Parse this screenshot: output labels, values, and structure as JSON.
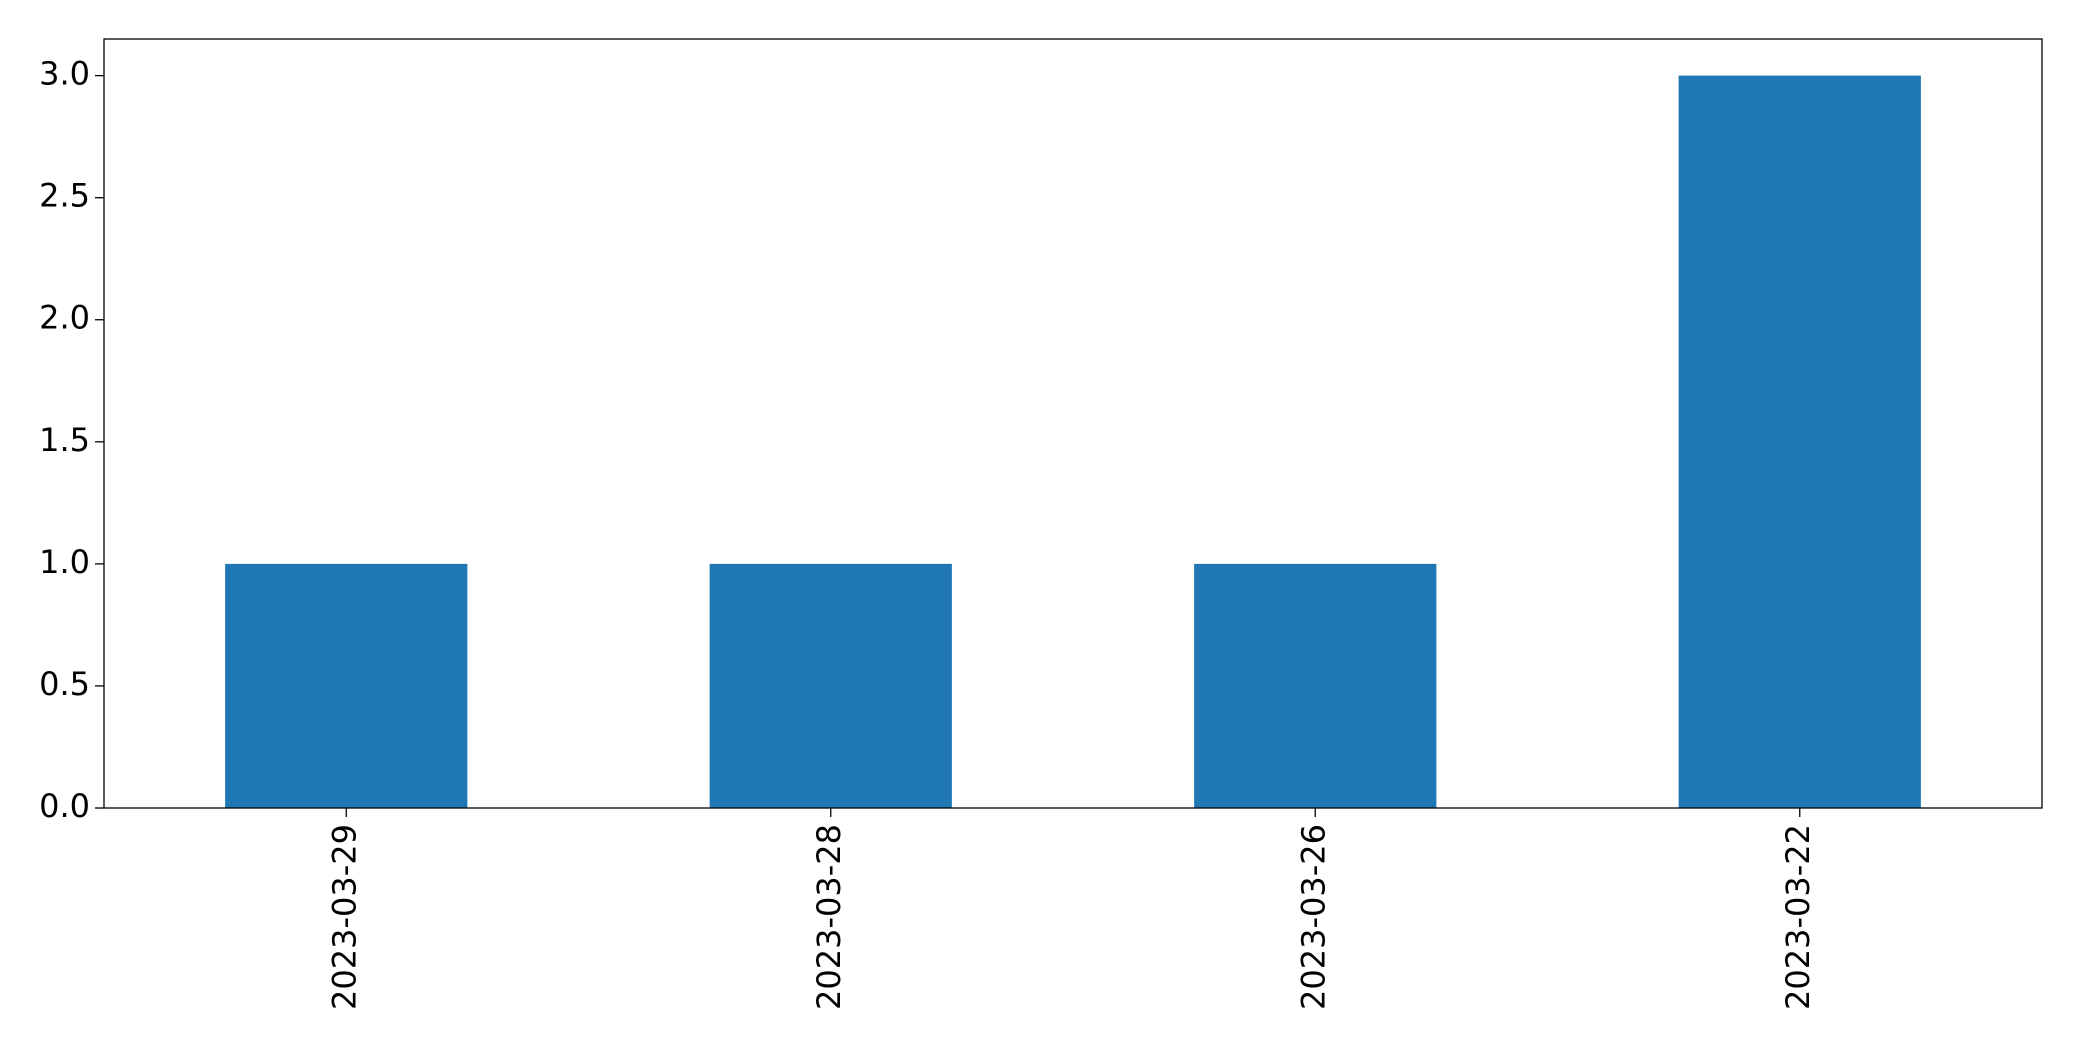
{
  "chart_data": {
    "type": "bar",
    "categories": [
      "2023-03-29",
      "2023-03-28",
      "2023-03-26",
      "2023-03-22"
    ],
    "values": [
      1,
      1,
      1,
      3
    ],
    "color": "#1f77b4",
    "ylim": [
      0,
      3.15
    ],
    "yticks": [
      {
        "value": 0,
        "label": "0.0"
      },
      0.5,
      {
        "value": 1,
        "label": "1.0"
      },
      1.5,
      {
        "value": 2,
        "label": "2.0"
      },
      2.5,
      {
        "value": 3,
        "label": "3.0"
      }
    ],
    "grid": false
  }
}
